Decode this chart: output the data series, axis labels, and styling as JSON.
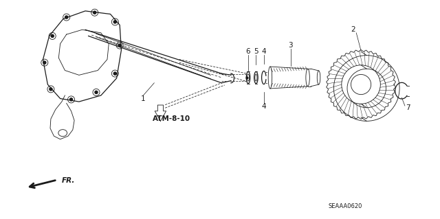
{
  "bg_color": "#ffffff",
  "line_color": "#1a1a1a",
  "ref_code": "SEAAA0620",
  "fr_label": "FR.",
  "atm_label": "ATM-8-10",
  "fig_width": 6.4,
  "fig_height": 3.19,
  "xlim": [
    0,
    13
  ],
  "ylim": [
    0,
    7
  ]
}
